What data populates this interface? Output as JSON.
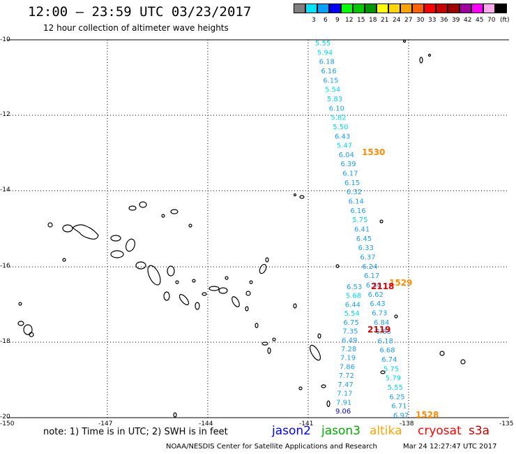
{
  "header": {
    "title": "12:00 — 23:59 UTC 03/23/2017",
    "subtitle": "12 hour collection of altimeter wave heights"
  },
  "legend": {
    "unit": "(ft)",
    "items": [
      {
        "label": "",
        "color": "#7f7f7f"
      },
      {
        "label": "3",
        "color": "#00e5ff"
      },
      {
        "label": "6",
        "color": "#00a0ff"
      },
      {
        "label": "9",
        "color": "#0000ff"
      },
      {
        "label": "12",
        "color": "#00ff00"
      },
      {
        "label": "15",
        "color": "#00c800"
      },
      {
        "label": "18",
        "color": "#009600"
      },
      {
        "label": "21",
        "color": "#ffff00"
      },
      {
        "label": "24",
        "color": "#ffd700"
      },
      {
        "label": "27",
        "color": "#ffa500"
      },
      {
        "label": "30",
        "color": "#ff6400"
      },
      {
        "label": "33",
        "color": "#ff0000"
      },
      {
        "label": "36",
        "color": "#c80000"
      },
      {
        "label": "39",
        "color": "#a00000"
      },
      {
        "label": "42",
        "color": "#a000a0"
      },
      {
        "label": "45",
        "color": "#ff00ff"
      },
      {
        "label": "70",
        "color": "#ffaaee"
      },
      {
        "label": "",
        "color": "#000000"
      }
    ]
  },
  "axes": {
    "y_labels": [
      "-10",
      "-12",
      "-14",
      "-16",
      "-18",
      "-20"
    ],
    "x_labels": [
      "-150",
      "-147",
      "-144",
      "-141",
      "-138",
      "-135"
    ]
  },
  "footer": {
    "note": "note: 1) Time is in UTC; 2) SWH is in feet",
    "satellites": [
      {
        "name": "jason2",
        "color": "#0000ff"
      },
      {
        "name": "jason3",
        "color": "#00aa00"
      },
      {
        "name": "altika",
        "color": "#ffa500"
      },
      {
        "name": "cryosat",
        "color": "#ff0000"
      },
      {
        "name": "s3a",
        "color": "#cc0000"
      }
    ],
    "credit": "NOAA/NESDIS Center for Satellite Applications and Research",
    "timestamp": "Mar 24 12:27:47 UTC 2017"
  },
  "tracks": {
    "track1": [
      "5.55",
      "5.94",
      "6.18",
      "6.16",
      "6.15",
      "5.54",
      "5.83",
      "6.10",
      "5.82",
      "5.50",
      "6.43",
      "5.47",
      "6.04",
      "6.39",
      "6.17",
      "6.15",
      "6.32",
      "6.14",
      "6.16",
      "5.75",
      "6.41",
      "6.45",
      "6.33",
      "6.37",
      "6.24",
      "6.17",
      "6.30",
      "6.62",
      "6.43",
      "6.73",
      "6.84",
      "6.85",
      "6.18",
      "6.68",
      "6.74",
      "5.75",
      "5.79",
      "5.55",
      "6.25",
      "6.71",
      "6.97"
    ],
    "track2": [
      "6.53",
      "5.68",
      "6.44",
      "5.54",
      "6.75",
      "7.35",
      "6.49",
      "7.28",
      "7.19",
      "7.86",
      "7.72",
      "7.47",
      "7.17",
      "7.91",
      "9.06"
    ]
  },
  "time_labels": [
    {
      "text": "1530",
      "color": "#ff8c00"
    },
    {
      "text": "1529",
      "color": "#ff8c00"
    },
    {
      "text": "2118",
      "color": "#dd0000"
    },
    {
      "text": "2119",
      "color": "#dd0000"
    },
    {
      "text": "1528",
      "color": "#ff8c00"
    }
  ]
}
